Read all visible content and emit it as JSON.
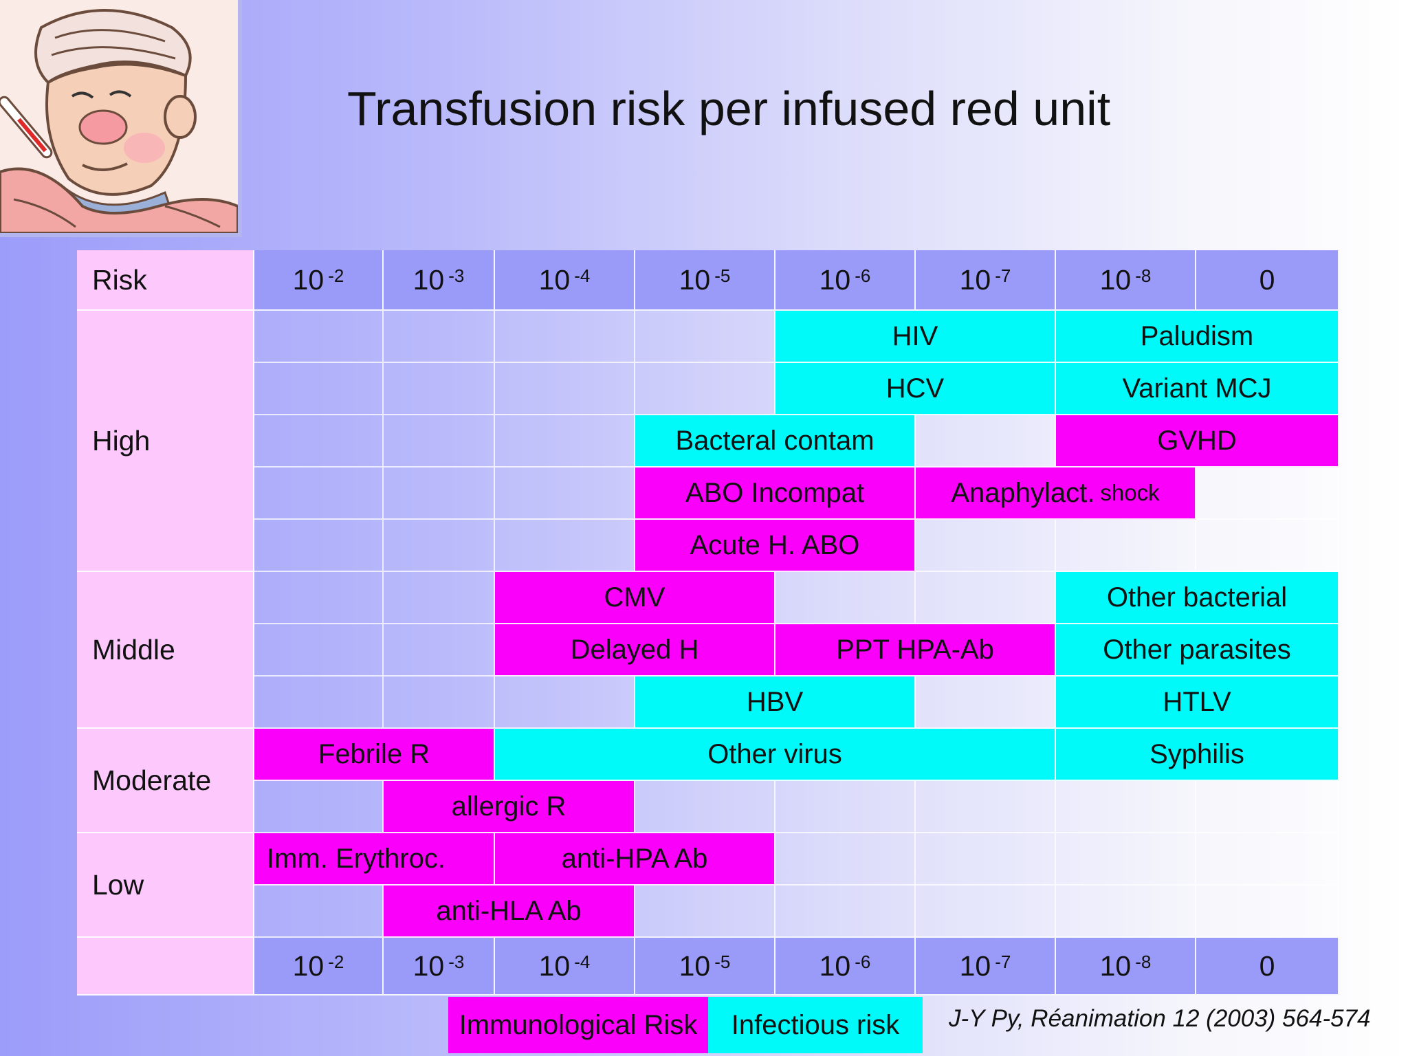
{
  "title": "Transfusion risk per infused red unit",
  "header": {
    "risk_label": "Risk",
    "columns": [
      {
        "base": "10",
        "exp": "-2"
      },
      {
        "base": "10",
        "exp": "-3"
      },
      {
        "base": "10",
        "exp": "-4"
      },
      {
        "base": "10",
        "exp": "-5"
      },
      {
        "base": "10",
        "exp": "-6"
      },
      {
        "base": "10",
        "exp": "-7"
      },
      {
        "base": "10",
        "exp": "-8"
      },
      {
        "base": "0",
        "exp": ""
      }
    ]
  },
  "levels": {
    "high": "High",
    "middle": "Middle",
    "moderate": "Moderate",
    "low": "Low"
  },
  "risks": {
    "hiv": "HIV",
    "paludism": "Paludism",
    "hcv": "HCV",
    "variant_mcj": "Variant MCJ",
    "bacteral_contam": "Bacteral contam",
    "gvhd": "GVHD",
    "abo_incompat": "ABO Incompat",
    "anaphylact_main": "Anaphylact.",
    "anaphylact_small": "shock",
    "acute_h_abo": "Acute H. ABO",
    "cmv": "CMV",
    "other_bacterial": "Other bacterial",
    "delayed_h": "Delayed H",
    "ppt_hpa_ab": "PPT HPA-Ab",
    "other_parasites": "Other parasites",
    "hbv": "HBV",
    "htlv": "HTLV",
    "febrile_r": "Febrile R",
    "other_virus": "Other virus",
    "syphilis": "Syphilis",
    "allergic_r": "allergic R",
    "imm_erythroc": "Imm. Erythroc.",
    "anti_hpa_ab": "anti-HPA Ab",
    "anti_hla_ab": "anti-HLA Ab"
  },
  "legend": {
    "immunological": "Immunological Risk",
    "infectious": "Infectious risk"
  },
  "citation": "J-Y Py, Réanimation 12 (2003) 564-574",
  "colors": {
    "immunological": "#fa00fa",
    "infectious": "#00f9f9",
    "header": "#9a9af8",
    "label": "#fdc9fd"
  }
}
